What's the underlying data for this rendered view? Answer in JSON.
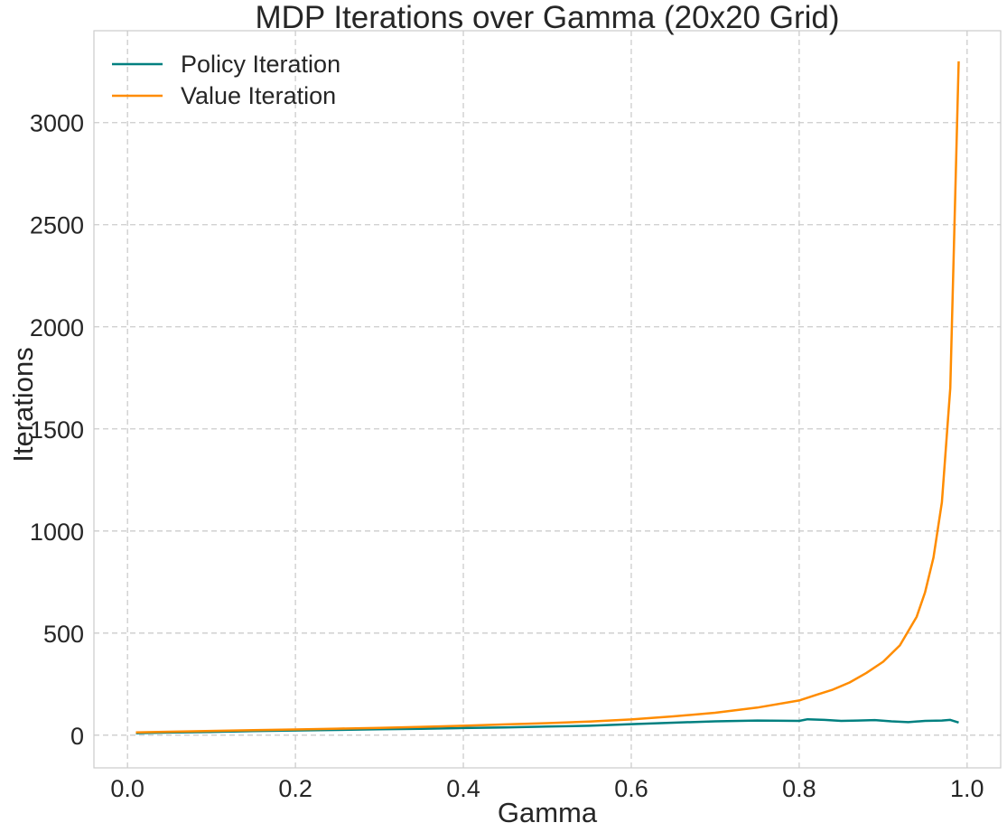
{
  "chart_data": {
    "type": "line",
    "title": "MDP Iterations over Gamma (20x20 Grid)",
    "xlabel": "Gamma",
    "ylabel": "Iterations",
    "xlim": [
      -0.04,
      1.04
    ],
    "ylim": [
      -160,
      3450
    ],
    "xticks": [
      0.0,
      0.2,
      0.4,
      0.6,
      0.8,
      1.0
    ],
    "xtick_labels": [
      "0.0",
      "0.2",
      "0.4",
      "0.6",
      "0.8",
      "1.0"
    ],
    "yticks": [
      0,
      500,
      1000,
      1500,
      2000,
      2500,
      3000
    ],
    "ytick_labels": [
      "0",
      "500",
      "1000",
      "1500",
      "2000",
      "2500",
      "3000"
    ],
    "grid": true,
    "legend_position": "top-left",
    "series": [
      {
        "name": "Policy Iteration",
        "color": "#008080",
        "x": [
          0.01,
          0.05,
          0.1,
          0.15,
          0.2,
          0.25,
          0.3,
          0.35,
          0.4,
          0.45,
          0.5,
          0.55,
          0.6,
          0.65,
          0.7,
          0.75,
          0.8,
          0.81,
          0.83,
          0.85,
          0.87,
          0.89,
          0.91,
          0.93,
          0.95,
          0.97,
          0.98,
          0.99
        ],
        "y": [
          10,
          13,
          16,
          20,
          23,
          26,
          29,
          31,
          35,
          38,
          42,
          46,
          54,
          61,
          68,
          72,
          70,
          78,
          75,
          70,
          72,
          74,
          68,
          64,
          70,
          72,
          75,
          62
        ]
      },
      {
        "name": "Value Iteration",
        "color": "#ff8c00",
        "x": [
          0.01,
          0.05,
          0.1,
          0.15,
          0.2,
          0.25,
          0.3,
          0.35,
          0.4,
          0.45,
          0.5,
          0.55,
          0.6,
          0.65,
          0.7,
          0.75,
          0.8,
          0.82,
          0.84,
          0.86,
          0.88,
          0.9,
          0.92,
          0.94,
          0.95,
          0.96,
          0.97,
          0.98,
          0.99
        ],
        "y": [
          14,
          17,
          21,
          25,
          28,
          32,
          36,
          41,
          46,
          53,
          59,
          67,
          77,
          92,
          110,
          135,
          170,
          197,
          223,
          258,
          305,
          360,
          440,
          580,
          700,
          870,
          1140,
          1700,
          3300
        ]
      }
    ]
  }
}
